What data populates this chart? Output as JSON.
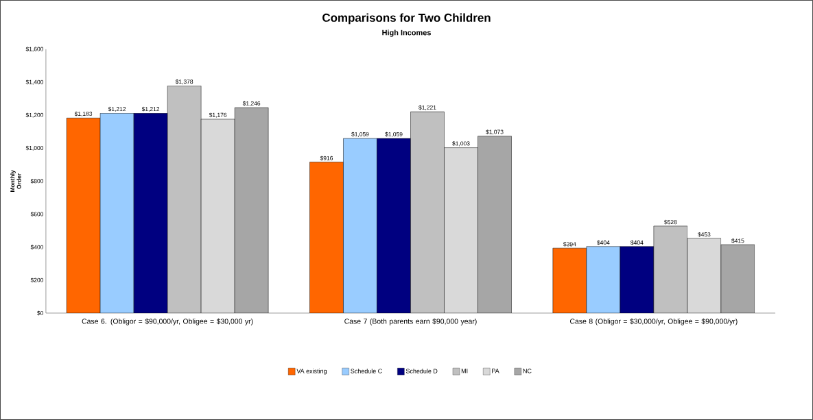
{
  "chart_data": {
    "type": "bar",
    "title": "Comparisons for Two Children",
    "subtitle": "High Incomes",
    "ylabel": "Monthly Order",
    "categories": [
      "Case 6. (Obligor = $90,000/yr, Obligee = $30,000 yr)",
      "Case 7 (Both parents earn $90,000 year)",
      "Case 8 (Obligor = $30,000/yr, Obligee = $90,000/yr)"
    ],
    "series": [
      {
        "name": "VA existing",
        "color": "#ff6600",
        "values": [
          1183,
          916,
          394
        ],
        "value_labels": [
          "$1,183",
          "$916",
          "$394"
        ]
      },
      {
        "name": "Schedule C",
        "color": "#99ccff",
        "values": [
          1212,
          1059,
          404
        ],
        "value_labels": [
          "$1,212",
          "$1,059",
          "$404"
        ]
      },
      {
        "name": "Schedule D",
        "color": "#000080",
        "values": [
          1212,
          1059,
          404
        ],
        "value_labels": [
          "$1,212",
          "$1,059",
          "$404"
        ]
      },
      {
        "name": "MI",
        "color": "#c0c0c0",
        "values": [
          1378,
          1221,
          528
        ],
        "value_labels": [
          "$1,378",
          "$1,221",
          "$528"
        ]
      },
      {
        "name": "PA",
        "color": "#d9d9d9",
        "values": [
          1176,
          1003,
          453
        ],
        "value_labels": [
          "$1,176",
          "$1,003",
          "$453"
        ]
      },
      {
        "name": "NC",
        "color": "#a6a6a6",
        "values": [
          1246,
          1073,
          415
        ],
        "value_labels": [
          "$1,246",
          "$1,073",
          "$415"
        ]
      }
    ],
    "ylim": [
      0,
      1600
    ],
    "yticks": [
      {
        "value": 0,
        "label": "$0"
      },
      {
        "value": 200,
        "label": "$200"
      },
      {
        "value": 400,
        "label": "$400"
      },
      {
        "value": 600,
        "label": "$600"
      },
      {
        "value": 800,
        "label": "$800"
      },
      {
        "value": 1000,
        "label": "$1,000"
      },
      {
        "value": 1200,
        "label": "$1,200"
      },
      {
        "value": 1400,
        "label": "$1,400"
      },
      {
        "value": 1600,
        "label": "$1,600"
      }
    ],
    "grid": false,
    "legend": "bottom"
  }
}
